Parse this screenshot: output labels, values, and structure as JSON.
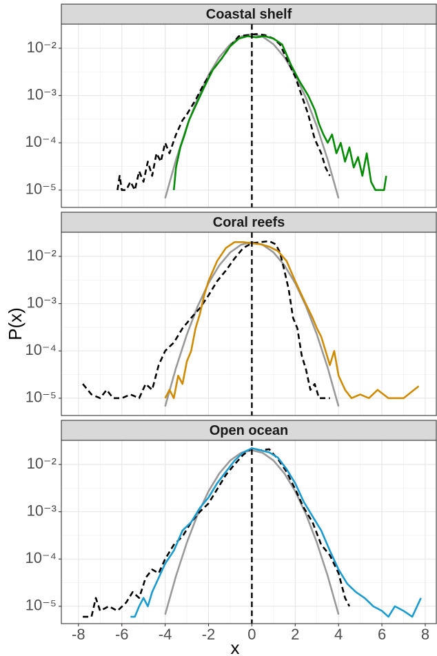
{
  "chart_data": [
    {
      "type": "line",
      "title": "Coastal shelf",
      "ylog": true,
      "grid": true,
      "vline": 0,
      "xlim": [
        -8.79,
        8.51
      ],
      "ylim": [
        4.3e-06,
        0.0324
      ],
      "xticks": [
        -8,
        -6,
        -4,
        -2,
        0,
        2,
        4,
        6,
        8
      ],
      "yticks": [
        {
          "value": 1e-05,
          "label": "10⁻⁵"
        },
        {
          "value": 0.0001,
          "label": "10⁻⁴"
        },
        {
          "value": 0.001,
          "label": "10⁻³"
        },
        {
          "value": 0.01,
          "label": "10⁻²"
        }
      ],
      "series": [
        {
          "color": "#999999",
          "dash": false,
          "x": [
            -4,
            -3.5,
            -3,
            -2.5,
            -2,
            -1.5,
            -1,
            -0.5,
            0,
            0.5,
            1,
            1.5,
            2,
            2.5,
            3,
            3.5,
            4
          ],
          "values": [
            6.7e-06,
            4.37e-05,
            0.000222,
            0.000878,
            0.00271,
            0.00649,
            0.0121,
            0.0176,
            0.02,
            0.0176,
            0.0121,
            0.00649,
            0.00271,
            0.000878,
            0.000222,
            4.37e-05,
            6.7e-06
          ]
        },
        {
          "color": "#000000",
          "dash": true,
          "x": [
            -6.2,
            -6.1,
            -6.0,
            -5.8,
            -5.6,
            -5.4,
            -5.2,
            -5.0,
            -4.8,
            -4.6,
            -4.4,
            -4.2,
            -4.0,
            -3.8,
            -3.5,
            -3.2,
            -3.0,
            -2.6,
            -2.2,
            -1.8,
            -1.4,
            -1.0,
            -0.6,
            -0.2,
            0.2,
            0.6,
            1.0,
            1.3,
            1.6,
            2.0,
            2.3,
            2.6,
            2.9,
            3.2,
            3.4,
            3.6
          ],
          "values": [
            1e-05,
            2e-05,
            1e-05,
            1e-05,
            1.5e-05,
            1e-05,
            2.5e-05,
            1.5e-05,
            4e-05,
            2e-05,
            6e-05,
            4e-05,
            0.0001,
            6e-05,
            0.00015,
            0.0003,
            0.0004,
            0.0008,
            0.0018,
            0.0035,
            0.006,
            0.011,
            0.018,
            0.019,
            0.02,
            0.019,
            0.016,
            0.012,
            0.006,
            0.0025,
            0.001,
            0.0004,
            0.00012,
            6e-05,
            3e-05,
            2e-05
          ]
        },
        {
          "color": "#008b00",
          "dash": false,
          "x": [
            -3.6,
            -3.5,
            -3.3,
            -3.1,
            -2.9,
            -2.6,
            -2.2,
            -1.8,
            -1.4,
            -1.0,
            -0.6,
            -0.2,
            0.2,
            0.6,
            1.0,
            1.4,
            1.8,
            2.2,
            2.6,
            2.9,
            3.1,
            3.3,
            3.5,
            3.7,
            3.9,
            4.1,
            4.3,
            4.5,
            4.7,
            4.9,
            5.1,
            5.3,
            5.5,
            5.7,
            5.9,
            6.1,
            6.2
          ],
          "values": [
            1e-05,
            3e-05,
            8e-05,
            0.00015,
            0.0003,
            0.0006,
            0.0015,
            0.0035,
            0.006,
            0.011,
            0.016,
            0.018,
            0.017,
            0.018,
            0.016,
            0.012,
            0.0045,
            0.002,
            0.001,
            0.0005,
            0.00025,
            0.00015,
            0.0001,
            0.00015,
            6e-05,
            0.0001,
            4e-05,
            8e-05,
            3e-05,
            5e-05,
            2e-05,
            6e-05,
            1.5e-05,
            1e-05,
            1e-05,
            1e-05,
            2e-05
          ]
        }
      ]
    },
    {
      "type": "line",
      "title": "Coral reefs",
      "ylabel": "P(x)",
      "ylog": true,
      "grid": true,
      "vline": 0,
      "xlim": [
        -8.79,
        8.51
      ],
      "ylim": [
        4.3e-06,
        0.0324
      ],
      "xticks": [
        -8,
        -6,
        -4,
        -2,
        0,
        2,
        4,
        6,
        8
      ],
      "yticks": [
        {
          "value": 1e-05,
          "label": "10⁻⁵"
        },
        {
          "value": 0.0001,
          "label": "10⁻⁴"
        },
        {
          "value": 0.001,
          "label": "10⁻³"
        },
        {
          "value": 0.01,
          "label": "10⁻²"
        }
      ],
      "series": [
        {
          "color": "#999999",
          "dash": false,
          "x": [
            -4,
            -3.5,
            -3,
            -2.5,
            -2,
            -1.5,
            -1,
            -0.5,
            0,
            0.5,
            1,
            1.5,
            2,
            2.5,
            3,
            3.5,
            4
          ],
          "values": [
            6.7e-06,
            4.37e-05,
            0.000222,
            0.000878,
            0.00271,
            0.00649,
            0.0121,
            0.0176,
            0.02,
            0.0176,
            0.0121,
            0.00649,
            0.00271,
            0.000878,
            0.000222,
            4.37e-05,
            6.7e-06
          ]
        },
        {
          "color": "#000000",
          "dash": true,
          "x": [
            -7.8,
            -7.4,
            -7.0,
            -6.7,
            -6.4,
            -6.0,
            -5.6,
            -5.2,
            -4.9,
            -4.6,
            -4.3,
            -4.0,
            -3.6,
            -3.2,
            -2.8,
            -2.4,
            -2.0,
            -1.6,
            -1.2,
            -0.8,
            -0.4,
            0,
            0.4,
            0.8,
            1.1,
            1.3,
            1.5,
            1.7,
            1.9,
            2.1,
            2.3,
            2.5,
            2.7,
            2.9,
            3.1,
            3.3,
            3.6
          ],
          "values": [
            2e-05,
            1.2e-05,
            1e-05,
            1.5e-05,
            1e-05,
            1e-05,
            1.2e-05,
            1e-05,
            2e-05,
            1.5e-05,
            5e-05,
            0.0001,
            0.00015,
            0.0003,
            0.0005,
            0.0008,
            0.0015,
            0.003,
            0.005,
            0.009,
            0.015,
            0.019,
            0.02,
            0.021,
            0.018,
            0.012,
            0.005,
            0.002,
            0.0005,
            0.0003,
            8e-05,
            4e-05,
            1.5e-05,
            2e-05,
            1e-05,
            1e-05,
            1e-05
          ]
        },
        {
          "color": "#d08a00",
          "dash": false,
          "x": [
            -4.0,
            -3.8,
            -3.6,
            -3.4,
            -3.2,
            -3.0,
            -2.8,
            -2.6,
            -2.4,
            -2.2,
            -2.0,
            -1.6,
            -1.2,
            -0.8,
            -0.4,
            0,
            0.4,
            0.8,
            1.2,
            1.6,
            2.0,
            2.4,
            2.8,
            3.0,
            3.2,
            3.4,
            3.6,
            3.8,
            4.0,
            4.3,
            4.6,
            5.0,
            5.4,
            5.8,
            6.3,
            6.6,
            7.0,
            7.7
          ],
          "values": [
            1e-05,
            1.5e-05,
            1e-05,
            3e-05,
            2e-05,
            6e-05,
            0.0001,
            0.0003,
            0.0006,
            0.0015,
            0.003,
            0.008,
            0.015,
            0.02,
            0.02,
            0.019,
            0.018,
            0.016,
            0.013,
            0.008,
            0.003,
            0.0012,
            0.0005,
            0.0003,
            0.0002,
            0.0001,
            5e-05,
            0.0001,
            3e-05,
            1.5e-05,
            1e-05,
            1.2e-05,
            1e-05,
            1.5e-05,
            1e-05,
            1e-05,
            1e-05,
            1.8e-05
          ]
        }
      ]
    },
    {
      "type": "line",
      "title": "Open ocean",
      "xlabel": "x",
      "ylog": true,
      "grid": true,
      "vline": 0,
      "xlim": [
        -8.79,
        8.51
      ],
      "ylim": [
        4.3e-06,
        0.0324
      ],
      "xticks": [
        -8,
        -6,
        -4,
        -2,
        0,
        2,
        4,
        6,
        8
      ],
      "yticks": [
        {
          "value": 1e-05,
          "label": "10⁻⁵"
        },
        {
          "value": 0.0001,
          "label": "10⁻⁴"
        },
        {
          "value": 0.001,
          "label": "10⁻³"
        },
        {
          "value": 0.01,
          "label": "10⁻²"
        }
      ],
      "series": [
        {
          "color": "#999999",
          "dash": false,
          "x": [
            -4,
            -3.5,
            -3,
            -2.5,
            -2,
            -1.5,
            -1,
            -0.5,
            0,
            0.5,
            1,
            1.5,
            2,
            2.5,
            3,
            3.5,
            4
          ],
          "values": [
            6.7e-06,
            4.37e-05,
            0.000222,
            0.000878,
            0.00271,
            0.00649,
            0.0121,
            0.0176,
            0.02,
            0.0176,
            0.0121,
            0.00649,
            0.00271,
            0.000878,
            0.000222,
            4.37e-05,
            6.7e-06
          ]
        },
        {
          "color": "#000000",
          "dash": true,
          "x": [
            -7.8,
            -7.4,
            -7.2,
            -7.0,
            -6.6,
            -6.2,
            -5.8,
            -5.5,
            -5.2,
            -4.9,
            -4.6,
            -4.3,
            -4.0,
            -3.6,
            -3.2,
            -2.8,
            -2.4,
            -2.0,
            -1.6,
            -1.2,
            -0.8,
            -0.4,
            0,
            0.4,
            0.8,
            1.2,
            1.6,
            2.0,
            2.4,
            2.8,
            3.2,
            3.6,
            4.0,
            4.3,
            4.5
          ],
          "values": [
            6e-06,
            6e-06,
            1.5e-05,
            8e-06,
            1e-05,
            8e-06,
            1.2e-05,
            2e-05,
            1.5e-05,
            4e-05,
            6e-05,
            5e-05,
            0.0001,
            0.0002,
            0.0003,
            0.0006,
            0.001,
            0.0015,
            0.003,
            0.006,
            0.01,
            0.016,
            0.022,
            0.02,
            0.021,
            0.013,
            0.007,
            0.003,
            0.0012,
            0.0006,
            0.0002,
            0.00012,
            5e-05,
            1.5e-05,
            1e-05
          ]
        },
        {
          "color": "#1a9bd0",
          "dash": false,
          "x": [
            -5.6,
            -5.4,
            -5.2,
            -5.0,
            -4.8,
            -4.6,
            -4.3,
            -4.0,
            -3.6,
            -3.2,
            -2.8,
            -2.4,
            -2.0,
            -1.6,
            -1.2,
            -0.8,
            -0.4,
            0,
            0.4,
            0.8,
            1.2,
            1.6,
            2.0,
            2.4,
            2.8,
            3.2,
            3.6,
            4.0,
            4.4,
            4.8,
            5.2,
            5.6,
            6.0,
            6.3,
            6.6,
            7.0,
            7.4,
            7.8
          ],
          "values": [
            6e-06,
            6e-06,
            1e-05,
            1.5e-05,
            1e-05,
            2e-05,
            4e-05,
            8e-05,
            0.00015,
            0.0004,
            0.0006,
            0.0012,
            0.002,
            0.004,
            0.007,
            0.012,
            0.018,
            0.022,
            0.02,
            0.018,
            0.014,
            0.008,
            0.004,
            0.0016,
            0.0008,
            0.0004,
            0.00015,
            6e-05,
            3e-05,
            2e-05,
            1.5e-05,
            1e-05,
            8e-06,
            6e-06,
            1e-05,
            8e-06,
            6e-06,
            1.5e-05
          ]
        }
      ]
    }
  ]
}
